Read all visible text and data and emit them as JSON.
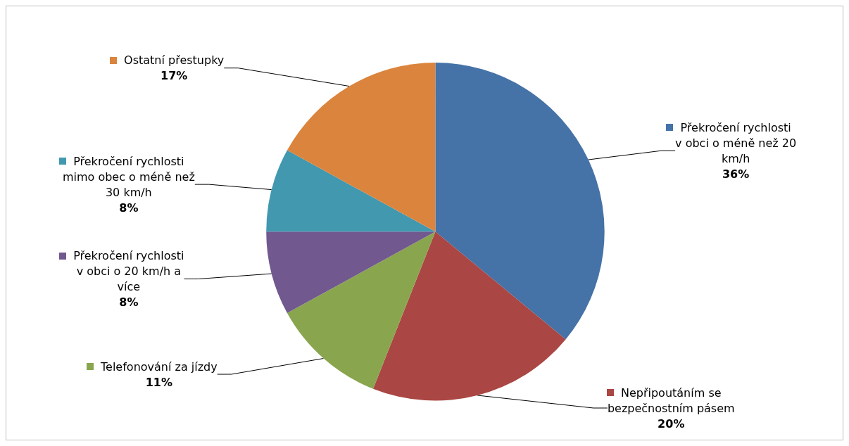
{
  "chart_data": {
    "type": "pie",
    "categories": [
      "Překročení rychlosti v obci o méně než 20 km/h",
      "Nepřipoutáním se bezpečnostním pásem",
      "Telefonování za jízdy",
      "Překročení rychlosti v obci o 20 km/h a více",
      "Překročení rychlosti mimo obec o méně než 30 km/h",
      "Ostatní přestupky"
    ],
    "values": [
      36,
      20,
      11,
      8,
      8,
      17
    ],
    "value_labels": [
      "36%",
      "20%",
      "11%",
      "8%",
      "8%",
      "17%"
    ],
    "colors": [
      "#4572a7",
      "#aa4643",
      "#89a54e",
      "#71588f",
      "#4198af",
      "#db843d"
    ],
    "legend": true
  }
}
